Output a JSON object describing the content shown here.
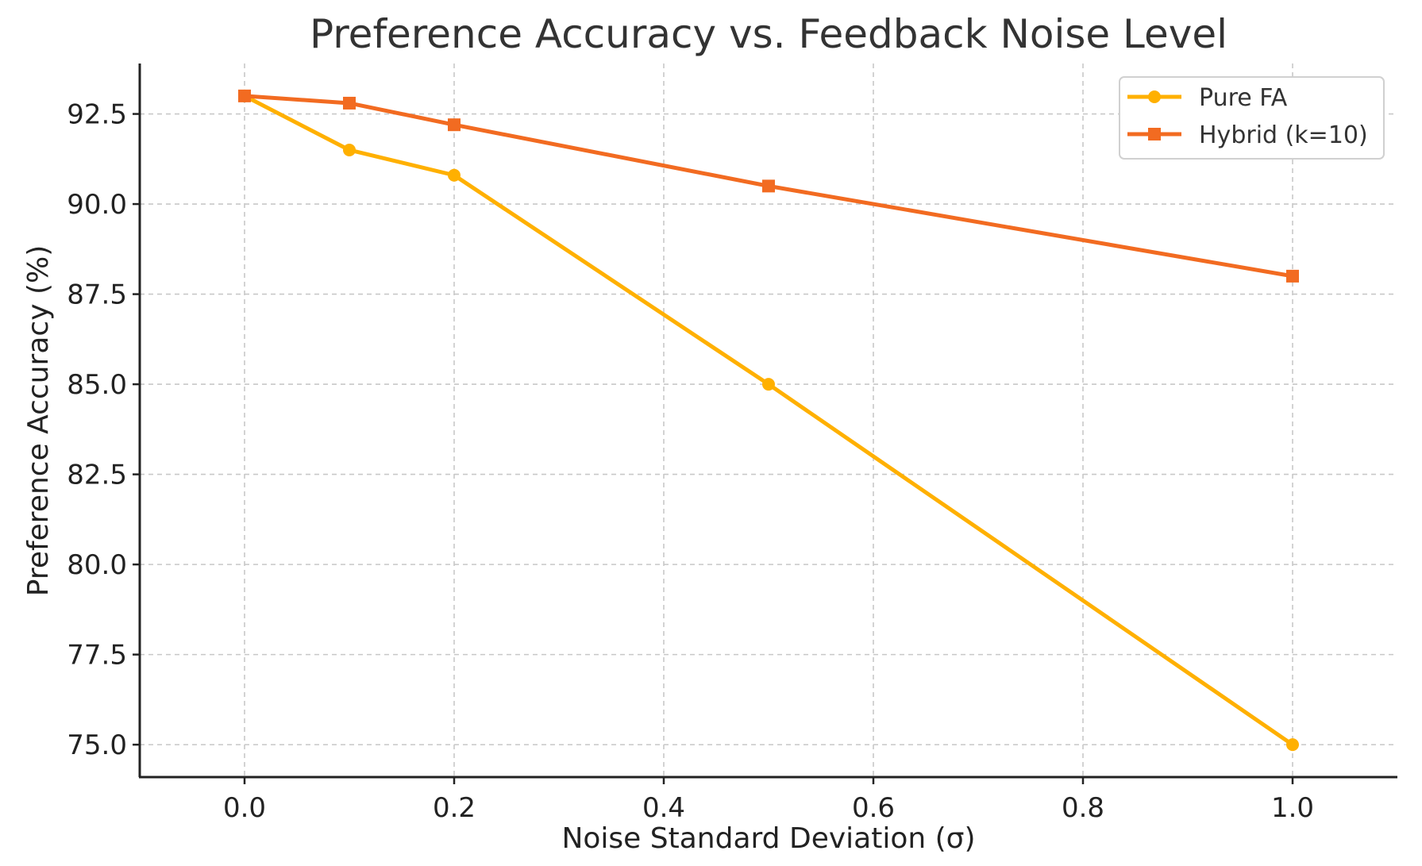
{
  "chart_data": {
    "type": "line",
    "title": "Preference Accuracy vs. Feedback Noise Level",
    "xlabel": "Noise Standard Deviation (σ)",
    "ylabel": "Preference Accuracy (%)",
    "xlim": [
      -0.1,
      1.1
    ],
    "ylim": [
      74.1,
      93.9
    ],
    "grid": true,
    "legend_position": "top-right",
    "x_ticks": [
      {
        "value": 0.0,
        "label": "0.0"
      },
      {
        "value": 0.2,
        "label": "0.2"
      },
      {
        "value": 0.4,
        "label": "0.4"
      },
      {
        "value": 0.6,
        "label": "0.6"
      },
      {
        "value": 0.8,
        "label": "0.8"
      },
      {
        "value": 1.0,
        "label": "1.0"
      }
    ],
    "y_ticks": [
      {
        "value": 75.0,
        "label": "75.0"
      },
      {
        "value": 77.5,
        "label": "77.5"
      },
      {
        "value": 80.0,
        "label": "80.0"
      },
      {
        "value": 82.5,
        "label": "82.5"
      },
      {
        "value": 85.0,
        "label": "85.0"
      },
      {
        "value": 87.5,
        "label": "87.5"
      },
      {
        "value": 90.0,
        "label": "90.0"
      },
      {
        "value": 92.5,
        "label": "92.5"
      }
    ],
    "x": [
      0.0,
      0.1,
      0.2,
      0.5,
      1.0
    ],
    "series": [
      {
        "name": "Pure FA",
        "color": "#FFB000",
        "marker": "circle",
        "values": [
          93.0,
          91.5,
          90.8,
          85.0,
          75.0
        ]
      },
      {
        "name": "Hybrid (k=10)",
        "color": "#F26B21",
        "marker": "square",
        "values": [
          93.0,
          92.8,
          92.2,
          90.5,
          88.0
        ]
      }
    ]
  }
}
